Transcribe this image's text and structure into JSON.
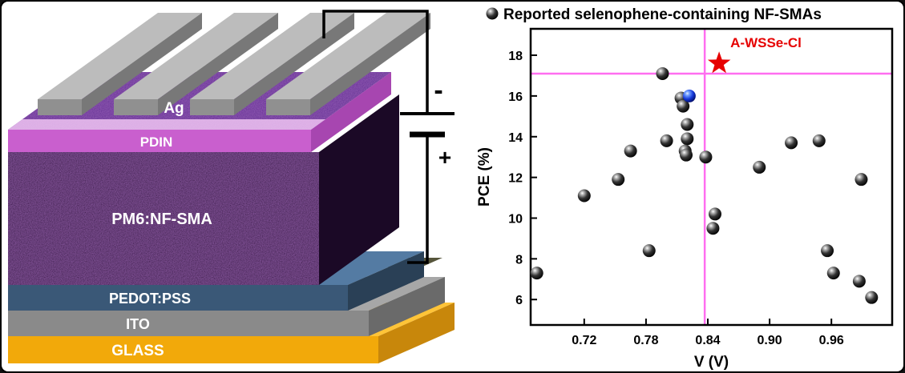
{
  "device": {
    "labels": {
      "ag": "Ag",
      "pdin": "PDIN",
      "active": "PM6:NF-SMA",
      "pedot": "PEDOT:PSS",
      "ito": "ITO",
      "glass": "GLASS",
      "terminal_negative": "-",
      "terminal_positive": "+"
    },
    "colors": {
      "glass_front": "#F2A90A",
      "glass_top": "#FFC438",
      "glass_side": "#C8870B",
      "ito_front": "#8A8A8A",
      "ito_top": "#A7A7A7",
      "ito_side": "#6A6A6A",
      "pedot_front": "#3A5877",
      "pedot_top": "#547BA3",
      "pedot_side": "#2A4056",
      "active_front": "#2B1038",
      "active_side": "#1B0926",
      "slab_top": "#5E2B91",
      "pdin_front": "#C95FCE",
      "pdin_top_strip": "#EFC3F2",
      "pdin_side": "#A746B0",
      "ag_front": "#909090",
      "ag_top": "#BCBCBC",
      "ag_side": "#787878",
      "contact_pad": "#56553B",
      "wire": "#000000"
    }
  },
  "chart_data": {
    "type": "scatter",
    "legend": "Reported selenophene-containing NF-SMAs",
    "xlabel": "V (V)",
    "ylabel": "PCE (%)",
    "xlim": [
      0.668,
      1.019
    ],
    "ylim": [
      4.75,
      19.3
    ],
    "xticks": [
      0.72,
      0.78,
      0.84,
      0.9,
      0.96
    ],
    "yticks": [
      6,
      8,
      10,
      12,
      14,
      16,
      18
    ],
    "grid": false,
    "crosshair": {
      "x": 0.837,
      "y": 17.1,
      "color": "#FF6EF0"
    },
    "series": [
      {
        "name": "reported-selenophene-nfsmas",
        "marker": "sphere",
        "sphere_style": "black",
        "color": "#111111",
        "points": [
          [
            0.674,
            7.3
          ],
          [
            0.72,
            11.1
          ],
          [
            0.753,
            11.9
          ],
          [
            0.765,
            13.3
          ],
          [
            0.783,
            8.4
          ],
          [
            0.8,
            13.8
          ],
          [
            0.796,
            17.1
          ],
          [
            0.814,
            15.9
          ],
          [
            0.816,
            15.5
          ],
          [
            0.82,
            14.6
          ],
          [
            0.82,
            13.9
          ],
          [
            0.818,
            13.3
          ],
          [
            0.819,
            13.1
          ],
          [
            0.838,
            13.0
          ],
          [
            0.847,
            10.2
          ],
          [
            0.845,
            9.5
          ],
          [
            0.89,
            12.5
          ],
          [
            0.921,
            13.7
          ],
          [
            0.948,
            13.8
          ],
          [
            0.956,
            8.4
          ],
          [
            0.962,
            7.3
          ],
          [
            0.989,
            11.9
          ],
          [
            0.987,
            6.9
          ],
          [
            0.999,
            6.1
          ]
        ]
      },
      {
        "name": "highlighted-blue-point",
        "marker": "sphere",
        "sphere_style": "blue",
        "color": "#2244DD",
        "points": [
          [
            0.822,
            16.0
          ]
        ]
      },
      {
        "name": "a-wsse-cl",
        "marker": "star",
        "color": "#E60000",
        "label": "A-WSSe-Cl",
        "points": [
          [
            0.851,
            17.6
          ]
        ]
      }
    ]
  }
}
